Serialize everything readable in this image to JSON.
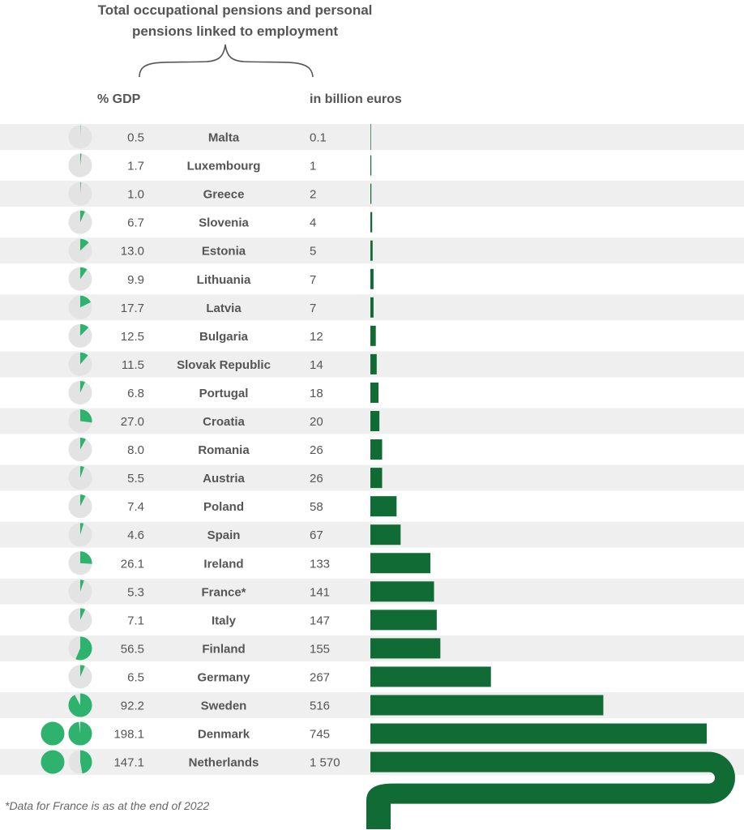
{
  "header": {
    "title_line1": "Total occupational pensions and personal",
    "title_line2": "pensions linked to employment",
    "gdp_column": "% GDP",
    "euro_column": "in billion euros"
  },
  "footnote": "*Data for France is as at the end of 2022",
  "colors": {
    "bar": "#106b35",
    "pie_fill": "#2db36e",
    "pie_bg": "#e3e3e3",
    "row_band": "#efefef",
    "text": "#555555"
  },
  "chart_data": {
    "type": "bar",
    "orientation": "horizontal",
    "categories": [
      "Malta",
      "Luxembourg",
      "Greece",
      "Slovenia",
      "Estonia",
      "Lithuania",
      "Latvia",
      "Bulgaria",
      "Slovak Republic",
      "Portugal",
      "Croatia",
      "Romania",
      "Austria",
      "Poland",
      "Spain",
      "Ireland",
      "France*",
      "Italy",
      "Finland",
      "Germany",
      "Sweden",
      "Denmark",
      "Netherlands"
    ],
    "gdp_pct": [
      0.5,
      1.7,
      1.0,
      6.7,
      13.0,
      9.9,
      17.7,
      12.5,
      11.5,
      6.8,
      27.0,
      8.0,
      5.5,
      7.4,
      4.6,
      26.1,
      5.3,
      7.1,
      56.5,
      6.5,
      92.2,
      198.1,
      147.1
    ],
    "gdp_labels": [
      "0.5",
      "1.7",
      "1.0",
      "6.7",
      "13.0",
      "9.9",
      "17.7",
      "12.5",
      "11.5",
      "6.8",
      "27.0",
      "8.0",
      "5.5",
      "7.4",
      "4.6",
      "26.1",
      "5.3",
      "7.1",
      "56.5",
      "6.5",
      "92.2",
      "198.1",
      "147.1"
    ],
    "values_billion_eur": [
      0.1,
      1,
      2,
      4,
      5,
      7,
      7,
      12,
      14,
      18,
      20,
      26,
      26,
      58,
      67,
      133,
      141,
      147,
      155,
      267,
      516,
      745,
      1570
    ],
    "value_labels": [
      "0.1",
      "1",
      "2",
      "4",
      "5",
      "7",
      "7",
      "12",
      "14",
      "18",
      "20",
      "26",
      "26",
      "58",
      "67",
      "133",
      "141",
      "147",
      "155",
      "267",
      "516",
      "745",
      "1 570"
    ]
  }
}
